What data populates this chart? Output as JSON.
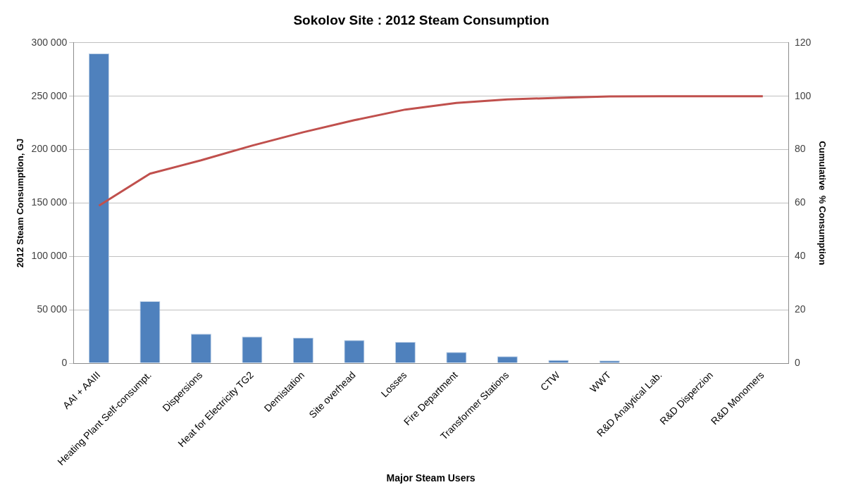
{
  "chart_data": {
    "type": "bar",
    "title": "Sokolov Site : 2012 Steam Consumption",
    "xlabel": "Major Steam Users",
    "ylabel": "2012 Steam Consumption, GJ",
    "y2label": "Cumulative  % Consumption",
    "categories": [
      "AAI + AAIII",
      "Heating Plant Self-consumpt.",
      "Dispersions",
      "Heat for Electricity TG2",
      "Demistation",
      "Site overhead",
      "Losses",
      "Fire Department",
      "Transformer Stations",
      "CTW",
      "WWT",
      "R&D Analytical Lab.",
      "R&D Disperzion",
      "R&D Monomers"
    ],
    "series": [
      {
        "color": "#4f81bd",
        "values": [
          290000,
          58000,
          27500,
          25000,
          24000,
          21700,
          20000,
          10400,
          6500,
          3000,
          2600,
          600,
          0,
          0
        ]
      },
      {
        "type": "line",
        "axis": "y2",
        "color": "#c0504d",
        "values": [
          59,
          71,
          76,
          81.5,
          86.5,
          91,
          95,
          97.5,
          98.8,
          99.4,
          99.9,
          100,
          100,
          100
        ]
      }
    ],
    "ylim": [
      0,
      300000
    ],
    "yticks": [
      0,
      {
        "value": 50000,
        "label": "50 000"
      },
      {
        "value": 100000,
        "label": "100 000"
      },
      {
        "value": 150000,
        "label": "150 000"
      },
      {
        "value": 200000,
        "label": "200 000"
      },
      {
        "value": 250000,
        "label": "250 000"
      },
      {
        "value": 300000,
        "label": "300 000"
      }
    ],
    "y2lim": [
      0,
      120
    ],
    "y2ticks": [
      0,
      20,
      40,
      60,
      80,
      100,
      120
    ],
    "grid": "y",
    "legend": false,
    "marker": "none"
  }
}
